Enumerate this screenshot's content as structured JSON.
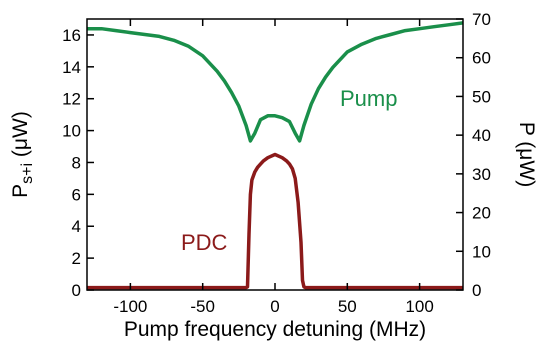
{
  "chart_data": {
    "type": "line",
    "xlabel": "Pump frequency detuning (MHz)",
    "ylabel_left": {
      "main": "P",
      "sub": "s+i",
      "unit": " (μW)"
    },
    "ylabel_right": "P (μW)",
    "xlim": [
      -130,
      130
    ],
    "ylim_left": [
      0,
      17
    ],
    "ylim_right": [
      0,
      70
    ],
    "x_ticks": [
      -100,
      -50,
      0,
      50,
      100
    ],
    "y_left_ticks": [
      0,
      2,
      4,
      6,
      8,
      10,
      12,
      14,
      16
    ],
    "y_right_ticks": [
      0,
      10,
      20,
      30,
      40,
      50,
      60,
      70
    ],
    "grid": false,
    "series": [
      {
        "name": "Pump",
        "axis": "right",
        "color": "#1a8f4a",
        "x": [
          -130,
          -120,
          -110,
          -100,
          -90,
          -80,
          -70,
          -60,
          -50,
          -40,
          -35,
          -30,
          -25,
          -20,
          -17,
          -14,
          -10,
          -5,
          0,
          5,
          10,
          14,
          17,
          20,
          25,
          30,
          35,
          40,
          50,
          60,
          70,
          80,
          90,
          100,
          110,
          120,
          130
        ],
        "values": [
          67.5,
          67.5,
          67,
          66.5,
          66,
          65.5,
          64.5,
          63,
          60.5,
          56.5,
          54,
          51,
          47.5,
          42.5,
          38.5,
          40.5,
          44,
          45,
          45,
          44.5,
          43.5,
          40.5,
          38.5,
          42.5,
          48,
          52,
          55,
          57.5,
          61.5,
          63.5,
          65,
          66,
          67,
          67.5,
          68,
          68.5,
          69
        ]
      },
      {
        "name": "PDC",
        "axis": "left",
        "color": "#8b1a1a",
        "x": [
          -130,
          -50,
          -20,
          -19,
          -18,
          -17,
          -16,
          -14,
          -12,
          -10,
          -8,
          -5,
          0,
          5,
          8,
          10,
          12,
          14,
          16,
          18,
          19,
          20,
          21,
          50,
          130
        ],
        "values": [
          0.15,
          0.15,
          0.15,
          0.2,
          3.5,
          6.0,
          6.9,
          7.4,
          7.7,
          7.9,
          8.1,
          8.3,
          8.5,
          8.3,
          8.1,
          7.9,
          7.6,
          7.0,
          5.5,
          3.0,
          0.6,
          0.2,
          0.15,
          0.15,
          0.15
        ]
      }
    ]
  }
}
